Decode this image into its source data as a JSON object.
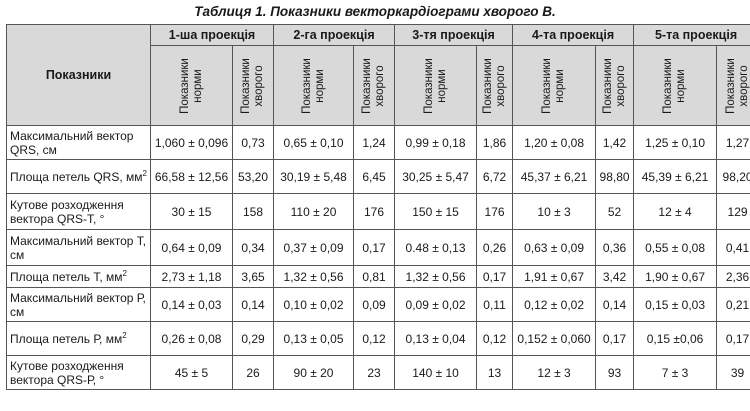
{
  "title": "Таблиця 1. Показники векторкардіограми хворого В.",
  "header": {
    "indicators": "Показники",
    "projections": [
      "1-ша проекція",
      "2-га проекція",
      "3-тя проекція",
      "4-та проекція",
      "5-та проекція"
    ],
    "sub_norm": "Показники норми",
    "sub_patient": "Показники хворого"
  },
  "rows": [
    {
      "label": "Максимальний вектор QRS, см",
      "cells": [
        "1,060 ± 0,096",
        "0,73",
        "0,65 ± 0,10",
        "1,24",
        "0,99 ± 0,18",
        "1,86",
        "1,20 ± 0,08",
        "1,42",
        "1,25 ± 0,10",
        "1,27"
      ]
    },
    {
      "label": "Площа петель QRS, мм",
      "sup": "2",
      "cells": [
        "66,58 ± 12,56",
        "53,20",
        "30,19 ± 5,48",
        "6,45",
        "30,25 ± 5,47",
        "6,72",
        "45,37 ± 6,21",
        "98,80",
        "45,39 ± 6,21",
        "98,20"
      ]
    },
    {
      "label": "Кутове розходження вектора QRS-T, °",
      "cells": [
        "30 ± 15",
        "158",
        "110 ± 20",
        "176",
        "150 ± 15",
        "176",
        "10 ± 3",
        "52",
        "12 ± 4",
        "129"
      ]
    },
    {
      "label": "Максимальний вектор Т, см",
      "cells": [
        "0,64 ± 0,09",
        "0,34",
        "0,37 ± 0,09",
        "0,17",
        "0.48 ± 0,13",
        "0,26",
        "0,63 ± 0,09",
        "0,36",
        "0,55 ± 0,08",
        "0,41"
      ]
    },
    {
      "label": "Площа петель Т, мм",
      "sup": "2",
      "cells": [
        "2,73 ± 1,18",
        "3,65",
        "1,32 ± 0,56",
        "0,81",
        "1,32 ± 0,56",
        "0,17",
        "1,91 ± 0,67",
        "3,42",
        "1,90 ± 0,67",
        "2,36"
      ]
    },
    {
      "label": "Максимальний вектор Р, см",
      "cells": [
        "0,14 ± 0,03",
        "0,14",
        "0,10 ± 0,02",
        "0,09",
        "0,09 ± 0,02",
        "0,11",
        "0,12 ± 0,02",
        "0,14",
        "0,15 ± 0,03",
        "0,21"
      ]
    },
    {
      "label": "Площа петель Р, мм",
      "sup": "2",
      "cells": [
        "0,26 ± 0,08",
        "0,29",
        "0,13 ± 0,05",
        "0,12",
        "0,13 ± 0,04",
        "0,12",
        "0,152 ± 0,060",
        "0,17",
        "0,15 ±0,06",
        "0,17"
      ]
    },
    {
      "label": "Кутове розходження вектора QRS-Р, °",
      "cells": [
        "45 ± 5",
        "26",
        "90 ± 20",
        "23",
        "140 ± 10",
        "13",
        "12 ± 3",
        "93",
        "7 ± 3",
        "39"
      ]
    }
  ]
}
